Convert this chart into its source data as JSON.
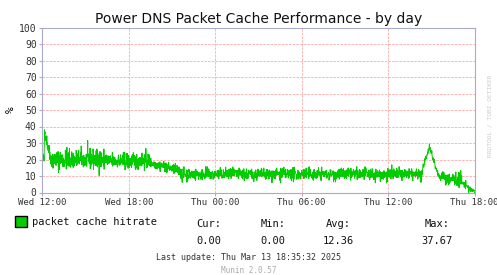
{
  "title": "Power DNS Packet Cache Performance - by day",
  "ylabel": "%",
  "ylim": [
    0,
    100
  ],
  "yticks": [
    0,
    10,
    20,
    30,
    40,
    50,
    60,
    70,
    80,
    90,
    100
  ],
  "xtick_labels": [
    "Wed 12:00",
    "Wed 18:00",
    "Thu 00:00",
    "Thu 06:00",
    "Thu 12:00",
    "Thu 18:00"
  ],
  "line_color": "#00cc00",
  "bg_color": "#ffffff",
  "plot_bg_color": "#ffffff",
  "grid_color": "#ff9999",
  "legend_label": "packet cache hitrate",
  "legend_color": "#00cc00",
  "cur": "0.00",
  "min_val": "0.00",
  "avg": "12.36",
  "max_val": "37.67",
  "last_update": "Last update: Thu Mar 13 18:35:32 2025",
  "munin_version": "Munin 2.0.57",
  "rrdtool_text": "RRDTOOL / TOBI OETIKER",
  "title_fontsize": 10,
  "axis_fontsize": 7,
  "legend_fontsize": 7.5
}
